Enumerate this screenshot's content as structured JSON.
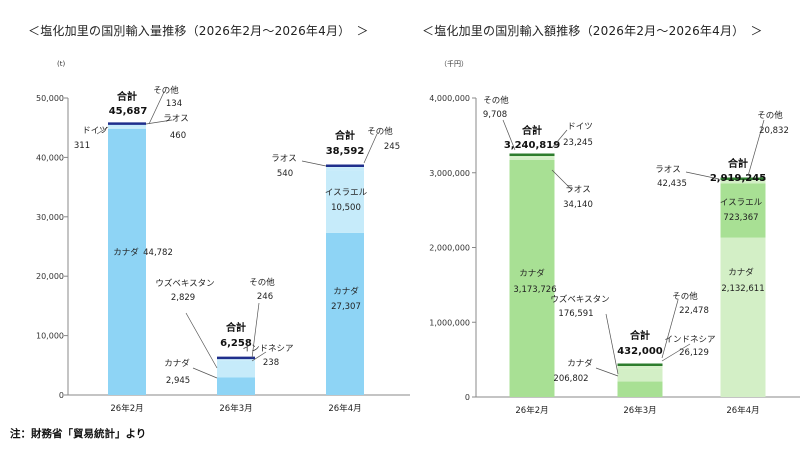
{
  "titles": {
    "left": "＜塩化加里の国別輸入量推移（2026年2月〜2026年4月）　＞",
    "right": "＜塩化加里の国別輸入額推移（2026年2月〜2026年4月）　＞"
  },
  "footnote": "注：財務省「貿易統計」より",
  "colors": {
    "left_main": "#8ed4f5",
    "left_light": "#c6ebfa",
    "left_total_bar": "#1f2f8c",
    "right_main": "#a8e094",
    "right_light": "#d3efc6",
    "right_total_bar": "#2e7d2e",
    "axis": "#888888",
    "leader": "#555555"
  },
  "chart_data": [
    {
      "type": "bar",
      "stacked": true,
      "unit": "(t)",
      "categories": [
        "26年2月",
        "26年3月",
        "26年4月"
      ],
      "total_label": "合計",
      "ylim": [
        0,
        50000
      ],
      "yticks": [
        "0",
        "10,000",
        "20,000",
        "30,000",
        "40,000",
        "50,000"
      ],
      "grid": false,
      "bars": [
        {
          "category": "26年2月",
          "total": 45687,
          "total_text": "45,687",
          "segments": [
            {
              "name": "カナダ",
              "value": 44782,
              "value_text": "44,782"
            },
            {
              "name": "ドイツ",
              "value": 311,
              "value_text": "311"
            },
            {
              "name": "ラオス",
              "value": 460,
              "value_text": "460"
            },
            {
              "name": "その他",
              "value": 134,
              "value_text": "134"
            }
          ]
        },
        {
          "category": "26年3月",
          "total": 6258,
          "total_text": "6,258",
          "segments": [
            {
              "name": "カナダ",
              "value": 2945,
              "value_text": "2,945"
            },
            {
              "name": "ウズベキスタン",
              "value": 2829,
              "value_text": "2,829"
            },
            {
              "name": "インドネシア",
              "value": 238,
              "value_text": "238"
            },
            {
              "name": "その他",
              "value": 246,
              "value_text": "246"
            }
          ]
        },
        {
          "category": "26年4月",
          "total": 38592,
          "total_text": "38,592",
          "segments": [
            {
              "name": "カナダ",
              "value": 27307,
              "value_text": "27,307"
            },
            {
              "name": "イスラエル",
              "value": 10500,
              "value_text": "10,500"
            },
            {
              "name": "ラオス",
              "value": 540,
              "value_text": "540"
            },
            {
              "name": "その他",
              "value": 245,
              "value_text": "245"
            }
          ]
        }
      ]
    },
    {
      "type": "bar",
      "stacked": true,
      "unit": "（千円）",
      "categories": [
        "26年2月",
        "26年3月",
        "26年4月"
      ],
      "total_label": "合計",
      "ylim": [
        0,
        4000000
      ],
      "yticks": [
        "0",
        "1,000,000",
        "2,000,000",
        "3,000,000",
        "4,000,000"
      ],
      "grid": false,
      "bars": [
        {
          "category": "26年2月",
          "total": 3240819,
          "total_text": "3,240,819",
          "segments": [
            {
              "name": "カナダ",
              "value": 3173726,
              "value_text": "3,173,726"
            },
            {
              "name": "ラオス",
              "value": 34140,
              "value_text": "34,140"
            },
            {
              "name": "ドイツ",
              "value": 23245,
              "value_text": "23,245"
            },
            {
              "name": "その他",
              "value": 9708,
              "value_text": "9,708"
            }
          ]
        },
        {
          "category": "26年3月",
          "total": 432000,
          "total_text": "432,000",
          "segments": [
            {
              "name": "カナダ",
              "value": 206802,
              "value_text": "206,802"
            },
            {
              "name": "ウズベキスタン",
              "value": 176591,
              "value_text": "176,591"
            },
            {
              "name": "インドネシア",
              "value": 26129,
              "value_text": "26,129"
            },
            {
              "name": "その他",
              "value": 22478,
              "value_text": "22,478"
            }
          ]
        },
        {
          "category": "26年4月",
          "total": 2919245,
          "total_text": "2,919,245",
          "segments": [
            {
              "name": "カナダ",
              "value": 2132611,
              "value_text": "2,132,611"
            },
            {
              "name": "イスラエル",
              "value": 723367,
              "value_text": "723,367"
            },
            {
              "name": "ラオス",
              "value": 42435,
              "value_text": "42,435"
            },
            {
              "name": "その他",
              "value": 20832,
              "value_text": "20,832"
            }
          ]
        }
      ]
    }
  ]
}
